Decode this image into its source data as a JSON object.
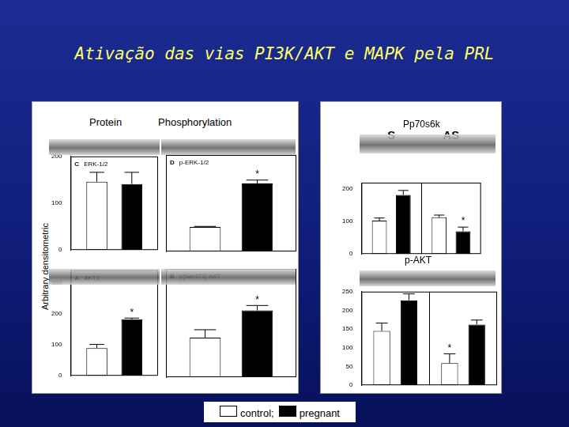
{
  "slide": {
    "title": "Ativação das vias PI3K/AKT e MAPK pela PRL",
    "column_headers": [
      "Protein",
      "Phosphorylation"
    ],
    "y_axis_label": "Arbitrary densitometric"
  },
  "chart_data": [
    {
      "type": "bar",
      "panel": "C",
      "title": "ERK-1/2",
      "categories": [
        null
      ],
      "series": [
        {
          "name": "control;",
          "color": "#ffffff",
          "values": [
            146
          ],
          "errors": [
            20
          ],
          "marks": [
            null
          ]
        },
        {
          "name": "pregnant",
          "color": "#000000",
          "values": [
            141
          ],
          "errors": [
            25
          ],
          "marks": [
            null
          ]
        }
      ],
      "ylim": [
        0,
        200
      ],
      "yticks": [
        0,
        100,
        200
      ]
    },
    {
      "type": "bar",
      "panel": "D",
      "title": "p-ERK-1/2",
      "categories": [
        null
      ],
      "tick_labels": false,
      "series": [
        {
          "name": "control;",
          "color": "#ffffff",
          "values": [
            51
          ],
          "errors": [
            1
          ],
          "marks": [
            null
          ]
        },
        {
          "name": "pregnant",
          "color": "#000000",
          "values": [
            141
          ],
          "errors": [
            7
          ],
          "marks": [
            "*"
          ]
        }
      ],
      "ylim": [
        0,
        200
      ],
      "yticks": [
        0,
        100,
        200
      ]
    },
    {
      "type": "bar",
      "panel": "A",
      "title": "AKT1",
      "categories": [
        null
      ],
      "series": [
        {
          "name": "control;",
          "color": "#ffffff",
          "values": [
            89
          ],
          "errors": [
            12
          ],
          "marks": [
            null
          ]
        },
        {
          "name": "pregnant",
          "color": "#000000",
          "values": [
            182
          ],
          "errors": [
            4
          ],
          "marks": [
            "*"
          ]
        }
      ],
      "ylim": [
        0,
        340
      ],
      "yticks": [
        0,
        100,
        200,
        300
      ]
    },
    {
      "type": "bar",
      "panel": "B",
      "title": "p[Ser473] AKT",
      "categories": [
        null
      ],
      "tick_labels": false,
      "series": [
        {
          "name": "control;",
          "color": "#ffffff",
          "values": [
            124
          ],
          "errors": [
            25
          ],
          "marks": [
            null
          ]
        },
        {
          "name": "pregnant",
          "color": "#000000",
          "values": [
            210
          ],
          "errors": [
            15
          ],
          "marks": [
            "*"
          ]
        }
      ],
      "ylim": [
        0,
        340
      ],
      "yticks": [
        0,
        100,
        200,
        300
      ]
    },
    {
      "type": "bar",
      "title": "Pp70s6k",
      "categories": [
        "S",
        "AS"
      ],
      "series": [
        {
          "name": "control;",
          "color": "#ffffff",
          "values": [
            103,
            113
          ],
          "errors": [
            8,
            7
          ],
          "marks": [
            null,
            null
          ]
        },
        {
          "name": "pregnant",
          "color": "#000000",
          "values": [
            182,
            70
          ],
          "errors": [
            14,
            13
          ],
          "marks": [
            null,
            "*"
          ]
        }
      ],
      "ylim": [
        0,
        220
      ],
      "yticks": [
        0,
        100,
        200
      ]
    },
    {
      "type": "bar",
      "title": "p-AKT",
      "categories": [
        null,
        null
      ],
      "series": [
        {
          "name": "control;",
          "color": "#ffffff",
          "values": [
            145,
            59
          ],
          "errors": [
            21,
            25
          ],
          "marks": [
            null,
            "*"
          ]
        },
        {
          "name": "pregnant",
          "color": "#000000",
          "values": [
            227,
            162
          ],
          "errors": [
            17,
            12
          ],
          "marks": [
            null,
            null
          ]
        }
      ],
      "ylim": [
        0,
        250
      ],
      "yticks": [
        0,
        50,
        100,
        150,
        200,
        250
      ]
    }
  ]
}
